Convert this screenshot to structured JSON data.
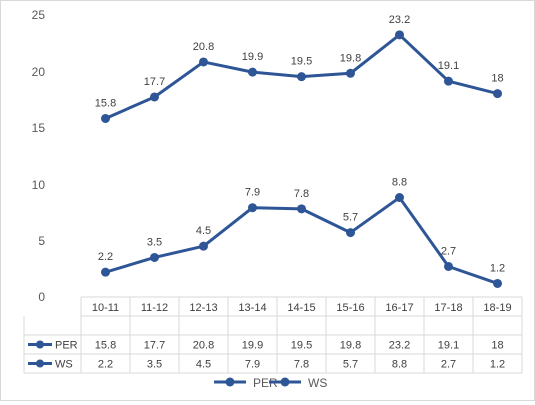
{
  "chart_data": {
    "type": "line",
    "categories": [
      "10-11",
      "11-12",
      "12-13",
      "13-14",
      "14-15",
      "15-16",
      "16-17",
      "17-18",
      "18-19"
    ],
    "series": [
      {
        "name": "PER",
        "values": [
          15.8,
          17.7,
          20.8,
          19.9,
          19.5,
          19.8,
          23.2,
          19.1,
          18
        ]
      },
      {
        "name": "WS",
        "values": [
          2.2,
          3.5,
          4.5,
          7.9,
          7.8,
          5.7,
          8.8,
          2.7,
          1.2
        ]
      }
    ],
    "ytick_labels": [
      "0",
      "5",
      "10",
      "15",
      "20",
      "25"
    ],
    "ylim": [
      0,
      25
    ],
    "y_axis_break": true,
    "grid": false,
    "data_labels": true,
    "data_table": true,
    "legend_position": "bottom",
    "line_color": "#2e5596",
    "title": "",
    "xlabel": "",
    "ylabel": ""
  }
}
